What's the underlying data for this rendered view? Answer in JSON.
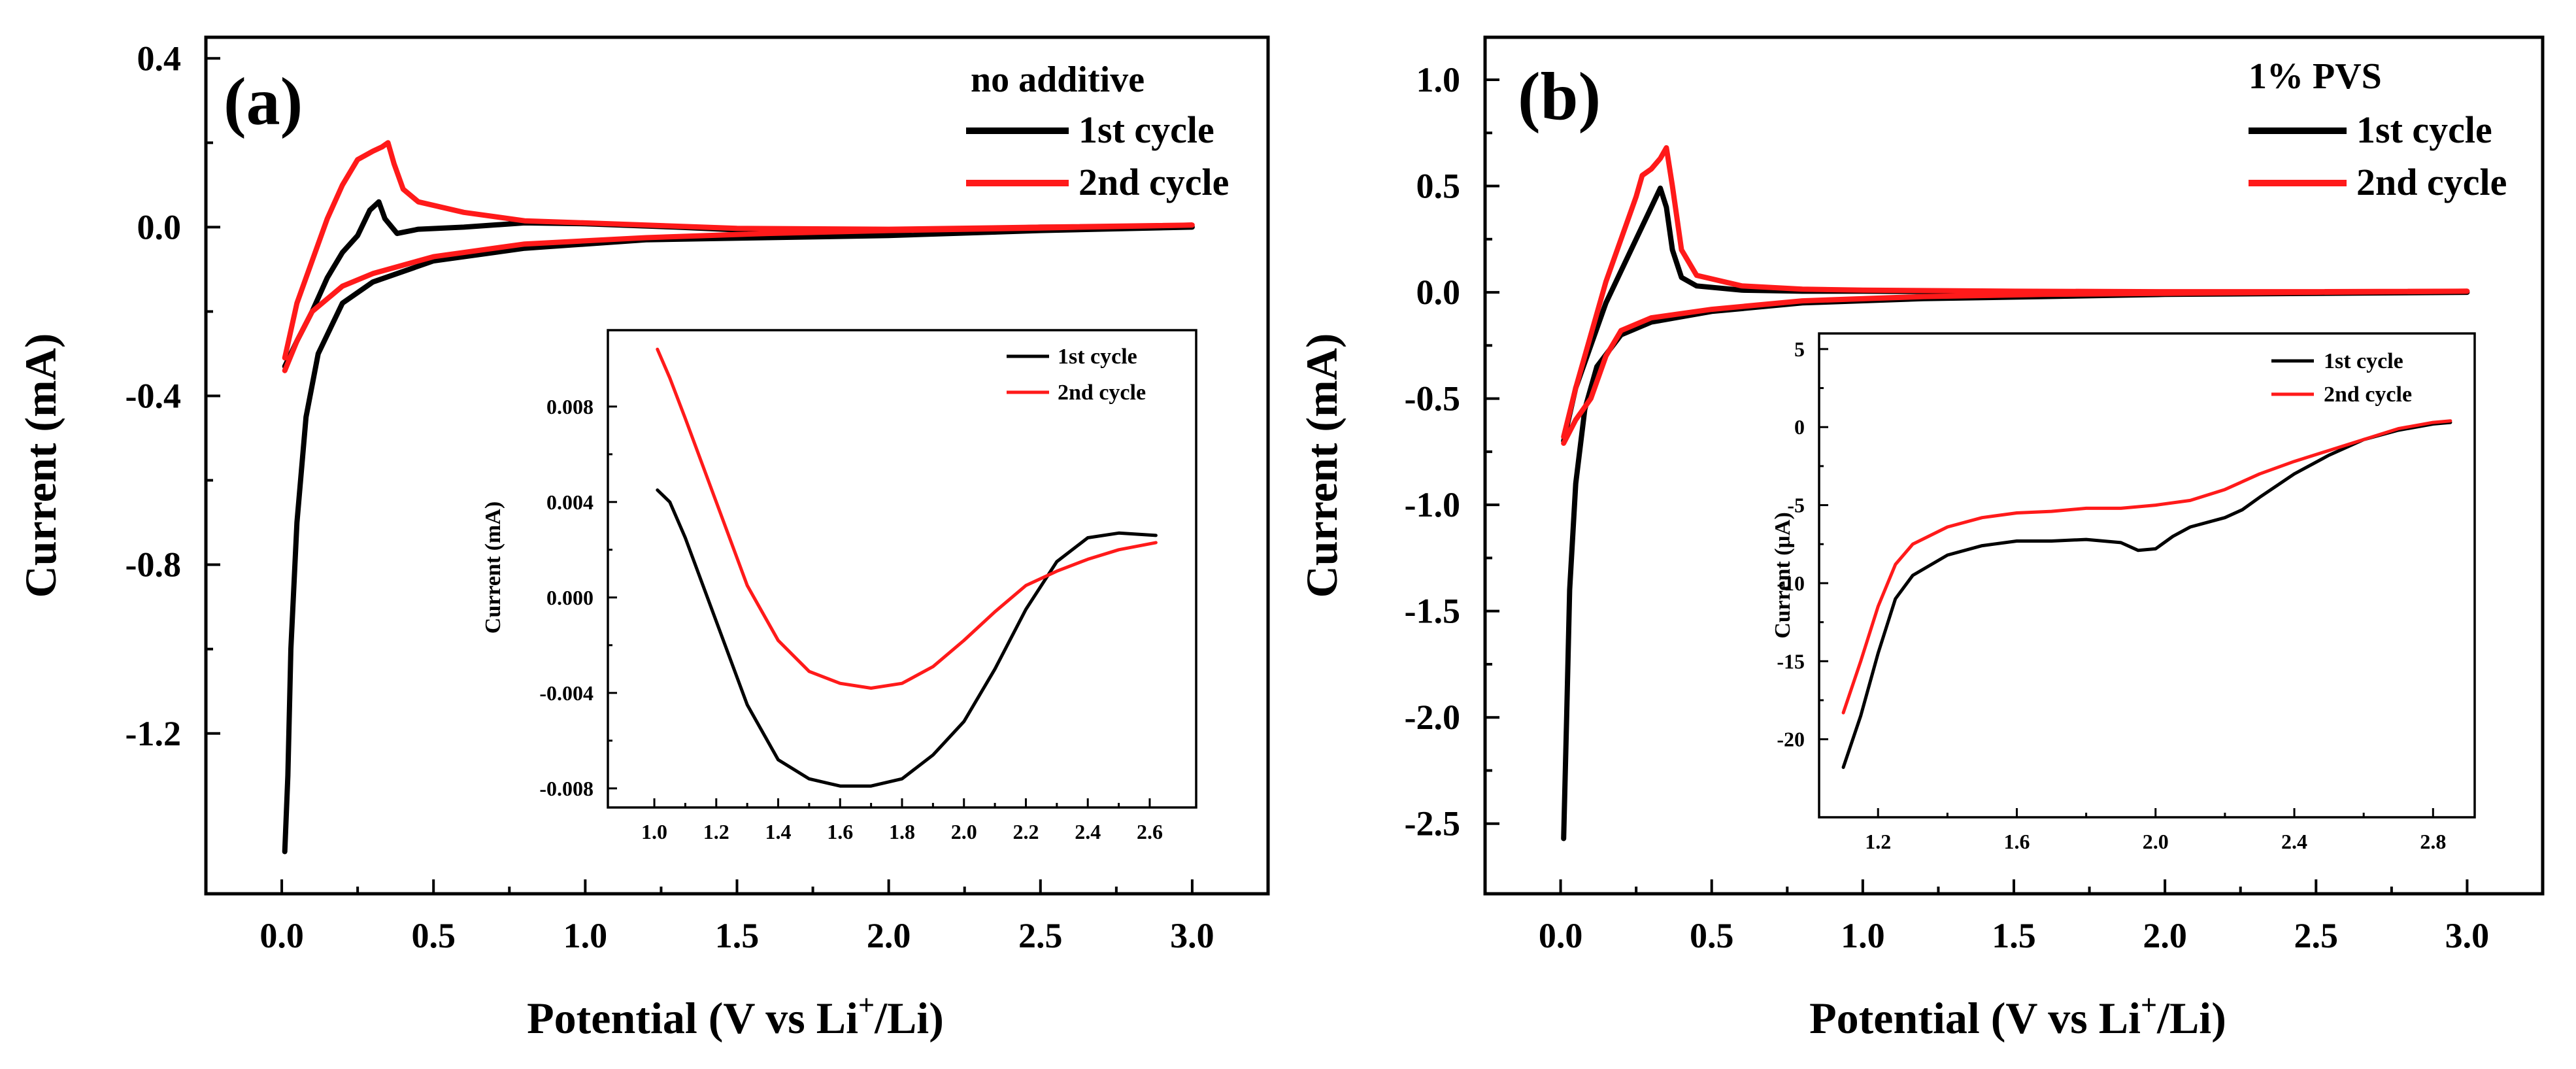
{
  "colors": {
    "cycle1": "#000000",
    "cycle2": "#ff1a1a"
  },
  "chart_data": [
    {
      "id": "a",
      "type": "line",
      "panel_label": "(a)",
      "legend_title": "no additive",
      "xlabel": "Potential (V vs Li+/Li)",
      "xlabel_main": "Potential (V vs Li",
      "xlabel_sup": "+",
      "xlabel_tail": "/Li)",
      "ylabel": "Current (mA)",
      "xlim": [
        -0.25,
        3.25
      ],
      "ylim": [
        -1.58,
        0.45
      ],
      "xticks": [
        0.0,
        0.5,
        1.0,
        1.5,
        2.0,
        2.5,
        3.0
      ],
      "xtick_labels": [
        "0.0",
        "0.5",
        "1.0",
        "1.5",
        "2.0",
        "2.5",
        "3.0"
      ],
      "yticks": [
        0.4,
        0.0,
        -0.4,
        -0.8,
        -1.2
      ],
      "ytick_labels": [
        "0.4",
        "0.0",
        "-0.4",
        "-0.8",
        "-1.2"
      ],
      "series": [
        {
          "name": "1st cycle",
          "color": "#000000",
          "points": [
            [
              0.01,
              -1.48
            ],
            [
              0.02,
              -1.3
            ],
            [
              0.03,
              -1.0
            ],
            [
              0.05,
              -0.7
            ],
            [
              0.08,
              -0.45
            ],
            [
              0.12,
              -0.3
            ],
            [
              0.2,
              -0.18
            ],
            [
              0.3,
              -0.13
            ],
            [
              0.5,
              -0.08
            ],
            [
              0.8,
              -0.05
            ],
            [
              1.2,
              -0.03
            ],
            [
              1.6,
              -0.025
            ],
            [
              2.0,
              -0.02
            ],
            [
              2.5,
              -0.008
            ],
            [
              3.0,
              0.0
            ],
            [
              2.5,
              0.0
            ],
            [
              2.0,
              -0.01
            ],
            [
              1.6,
              -0.01
            ],
            [
              1.3,
              0.0
            ],
            [
              1.0,
              0.008
            ],
            [
              0.8,
              0.01
            ],
            [
              0.6,
              0.0
            ],
            [
              0.45,
              -0.005
            ],
            [
              0.38,
              -0.015
            ],
            [
              0.34,
              0.02
            ],
            [
              0.32,
              0.06
            ],
            [
              0.29,
              0.04
            ],
            [
              0.25,
              -0.02
            ],
            [
              0.2,
              -0.06
            ],
            [
              0.15,
              -0.12
            ],
            [
              0.1,
              -0.2
            ],
            [
              0.05,
              -0.27
            ],
            [
              0.01,
              -0.33
            ]
          ]
        },
        {
          "name": "2nd cycle",
          "color": "#ff1a1a",
          "points": [
            [
              0.01,
              -0.34
            ],
            [
              0.05,
              -0.27
            ],
            [
              0.1,
              -0.2
            ],
            [
              0.2,
              -0.14
            ],
            [
              0.3,
              -0.11
            ],
            [
              0.5,
              -0.07
            ],
            [
              0.8,
              -0.04
            ],
            [
              1.2,
              -0.025
            ],
            [
              1.6,
              -0.015
            ],
            [
              2.0,
              -0.008
            ],
            [
              2.5,
              -0.002
            ],
            [
              3.0,
              0.005
            ],
            [
              2.5,
              0.0
            ],
            [
              2.0,
              -0.005
            ],
            [
              1.5,
              -0.003
            ],
            [
              1.0,
              0.01
            ],
            [
              0.8,
              0.015
            ],
            [
              0.6,
              0.035
            ],
            [
              0.45,
              0.06
            ],
            [
              0.4,
              0.09
            ],
            [
              0.37,
              0.15
            ],
            [
              0.35,
              0.2
            ],
            [
              0.33,
              0.19
            ],
            [
              0.3,
              0.18
            ],
            [
              0.25,
              0.16
            ],
            [
              0.2,
              0.1
            ],
            [
              0.15,
              0.02
            ],
            [
              0.1,
              -0.08
            ],
            [
              0.05,
              -0.18
            ],
            [
              0.01,
              -0.31
            ]
          ]
        }
      ],
      "inset": {
        "xlim": [
          0.85,
          2.75
        ],
        "ylim": [
          -0.0088,
          0.0112
        ],
        "xticks": [
          1.0,
          1.2,
          1.4,
          1.6,
          1.8,
          2.0,
          2.2,
          2.4,
          2.6
        ],
        "xtick_labels": [
          "1.0",
          "1.2",
          "1.4",
          "1.6",
          "1.8",
          "2.0",
          "2.2",
          "2.4",
          "2.6"
        ],
        "yticks": [
          0.008,
          0.004,
          0.0,
          -0.004,
          -0.008
        ],
        "ytick_labels": [
          "0.008",
          "0.004",
          "0.000",
          "-0.004",
          "-0.008"
        ],
        "ylabel": "Current (mA)",
        "legend": [
          "1st cycle",
          "2nd cycle"
        ],
        "series": [
          {
            "name": "1st cycle",
            "color": "#000000",
            "points": [
              [
                1.01,
                0.0045
              ],
              [
                1.05,
                0.004
              ],
              [
                1.1,
                0.0025
              ],
              [
                1.2,
                -0.001
              ],
              [
                1.3,
                -0.0045
              ],
              [
                1.4,
                -0.0068
              ],
              [
                1.5,
                -0.0076
              ],
              [
                1.6,
                -0.0079
              ],
              [
                1.7,
                -0.0079
              ],
              [
                1.8,
                -0.0076
              ],
              [
                1.9,
                -0.0066
              ],
              [
                2.0,
                -0.0052
              ],
              [
                2.1,
                -0.003
              ],
              [
                2.2,
                -0.0005
              ],
              [
                2.3,
                0.0015
              ],
              [
                2.4,
                0.0025
              ],
              [
                2.5,
                0.0027
              ],
              [
                2.62,
                0.0026
              ]
            ]
          },
          {
            "name": "2nd cycle",
            "color": "#ff1a1a",
            "points": [
              [
                1.01,
                0.0104
              ],
              [
                1.05,
                0.0092
              ],
              [
                1.1,
                0.0075
              ],
              [
                1.2,
                0.004
              ],
              [
                1.3,
                0.0005
              ],
              [
                1.4,
                -0.0018
              ],
              [
                1.5,
                -0.0031
              ],
              [
                1.6,
                -0.0036
              ],
              [
                1.7,
                -0.0038
              ],
              [
                1.8,
                -0.0036
              ],
              [
                1.9,
                -0.0029
              ],
              [
                2.0,
                -0.0018
              ],
              [
                2.1,
                -0.0006
              ],
              [
                2.2,
                0.0005
              ],
              [
                2.3,
                0.0011
              ],
              [
                2.4,
                0.0016
              ],
              [
                2.5,
                0.002
              ],
              [
                2.62,
                0.0023
              ]
            ]
          }
        ]
      }
    },
    {
      "id": "b",
      "type": "line",
      "panel_label": "(b)",
      "legend_title": "1% PVS",
      "xlabel": "Potential (V vs Li+/Li)",
      "xlabel_main": "Potential (V vs Li",
      "xlabel_sup": "+",
      "xlabel_tail": "/Li)",
      "ylabel": "Current (mA)",
      "xlim": [
        -0.25,
        3.25
      ],
      "ylim": [
        -2.83,
        1.2
      ],
      "xticks": [
        0.0,
        0.5,
        1.0,
        1.5,
        2.0,
        2.5,
        3.0
      ],
      "xtick_labels": [
        "0.0",
        "0.5",
        "1.0",
        "1.5",
        "2.0",
        "2.5",
        "3.0"
      ],
      "yticks": [
        1.0,
        0.5,
        0.0,
        -0.5,
        -1.0,
        -1.5,
        -2.0,
        -2.5
      ],
      "ytick_labels": [
        "1.0",
        "0.5",
        "0.0",
        "-0.5",
        "-1.0",
        "-1.5",
        "-2.0",
        "-2.5"
      ],
      "series": [
        {
          "name": "1st cycle",
          "color": "#000000",
          "points": [
            [
              0.01,
              -2.57
            ],
            [
              0.02,
              -2.0
            ],
            [
              0.03,
              -1.4
            ],
            [
              0.05,
              -0.9
            ],
            [
              0.08,
              -0.55
            ],
            [
              0.12,
              -0.35
            ],
            [
              0.2,
              -0.2
            ],
            [
              0.3,
              -0.14
            ],
            [
              0.5,
              -0.09
            ],
            [
              0.8,
              -0.05
            ],
            [
              1.2,
              -0.03
            ],
            [
              1.6,
              -0.02
            ],
            [
              2.0,
              -0.01
            ],
            [
              2.5,
              -0.005
            ],
            [
              3.0,
              0.0
            ],
            [
              2.5,
              0.0
            ],
            [
              2.0,
              0.0
            ],
            [
              1.5,
              0.002
            ],
            [
              1.0,
              0.005
            ],
            [
              0.8,
              0.005
            ],
            [
              0.6,
              0.01
            ],
            [
              0.45,
              0.03
            ],
            [
              0.4,
              0.07
            ],
            [
              0.37,
              0.2
            ],
            [
              0.35,
              0.4
            ],
            [
              0.33,
              0.49
            ],
            [
              0.3,
              0.4
            ],
            [
              0.25,
              0.25
            ],
            [
              0.2,
              0.1
            ],
            [
              0.15,
              -0.05
            ],
            [
              0.1,
              -0.25
            ],
            [
              0.05,
              -0.45
            ],
            [
              0.01,
              -0.7
            ]
          ]
        },
        {
          "name": "2nd cycle",
          "color": "#ff1a1a",
          "points": [
            [
              0.01,
              -0.71
            ],
            [
              0.05,
              -0.6
            ],
            [
              0.1,
              -0.5
            ],
            [
              0.15,
              -0.3
            ],
            [
              0.2,
              -0.18
            ],
            [
              0.3,
              -0.12
            ],
            [
              0.5,
              -0.08
            ],
            [
              0.8,
              -0.04
            ],
            [
              1.2,
              -0.02
            ],
            [
              1.6,
              -0.01
            ],
            [
              2.0,
              -0.005
            ],
            [
              2.5,
              0.0
            ],
            [
              3.0,
              0.005
            ],
            [
              2.5,
              0.003
            ],
            [
              2.0,
              0.003
            ],
            [
              1.5,
              0.005
            ],
            [
              1.0,
              0.01
            ],
            [
              0.8,
              0.015
            ],
            [
              0.6,
              0.03
            ],
            [
              0.45,
              0.08
            ],
            [
              0.4,
              0.2
            ],
            [
              0.37,
              0.5
            ],
            [
              0.35,
              0.68
            ],
            [
              0.33,
              0.63
            ],
            [
              0.3,
              0.58
            ],
            [
              0.27,
              0.55
            ],
            [
              0.25,
              0.45
            ],
            [
              0.2,
              0.25
            ],
            [
              0.15,
              0.05
            ],
            [
              0.1,
              -0.2
            ],
            [
              0.05,
              -0.45
            ],
            [
              0.01,
              -0.68
            ]
          ]
        }
      ],
      "inset": {
        "xlim": [
          1.03,
          2.92
        ],
        "ylim": [
          -25,
          6
        ],
        "xticks": [
          1.2,
          1.6,
          2.0,
          2.4,
          2.8
        ],
        "xtick_labels": [
          "1.2",
          "1.6",
          "2.0",
          "2.4",
          "2.8"
        ],
        "yticks": [
          5,
          0,
          -5,
          -10,
          -15,
          -20
        ],
        "ytick_labels": [
          "5",
          "0",
          "-5",
          "-10",
          "-15",
          "-20"
        ],
        "ylabel": "Current (μA)",
        "legend": [
          "1st cycle",
          "2nd cycle"
        ],
        "series": [
          {
            "name": "1st cycle",
            "color": "#000000",
            "points": [
              [
                1.1,
                -21.8
              ],
              [
                1.15,
                -18.5
              ],
              [
                1.2,
                -14.5
              ],
              [
                1.25,
                -11.0
              ],
              [
                1.3,
                -9.5
              ],
              [
                1.4,
                -8.2
              ],
              [
                1.5,
                -7.6
              ],
              [
                1.6,
                -7.3
              ],
              [
                1.7,
                -7.3
              ],
              [
                1.8,
                -7.2
              ],
              [
                1.9,
                -7.4
              ],
              [
                1.95,
                -7.9
              ],
              [
                2.0,
                -7.8
              ],
              [
                2.05,
                -7.0
              ],
              [
                2.1,
                -6.4
              ],
              [
                2.2,
                -5.8
              ],
              [
                2.25,
                -5.3
              ],
              [
                2.3,
                -4.5
              ],
              [
                2.4,
                -3.0
              ],
              [
                2.5,
                -1.8
              ],
              [
                2.6,
                -0.8
              ],
              [
                2.7,
                -0.2
              ],
              [
                2.8,
                0.2
              ],
              [
                2.85,
                0.3
              ]
            ]
          },
          {
            "name": "2nd cycle",
            "color": "#ff1a1a",
            "points": [
              [
                1.1,
                -18.3
              ],
              [
                1.15,
                -15.0
              ],
              [
                1.2,
                -11.5
              ],
              [
                1.25,
                -8.8
              ],
              [
                1.3,
                -7.5
              ],
              [
                1.4,
                -6.4
              ],
              [
                1.5,
                -5.8
              ],
              [
                1.6,
                -5.5
              ],
              [
                1.7,
                -5.4
              ],
              [
                1.8,
                -5.2
              ],
              [
                1.9,
                -5.2
              ],
              [
                2.0,
                -5.0
              ],
              [
                2.1,
                -4.7
              ],
              [
                2.2,
                -4.0
              ],
              [
                2.3,
                -3.0
              ],
              [
                2.4,
                -2.2
              ],
              [
                2.5,
                -1.5
              ],
              [
                2.6,
                -0.8
              ],
              [
                2.7,
                -0.1
              ],
              [
                2.8,
                0.3
              ],
              [
                2.85,
                0.4
              ]
            ]
          }
        ]
      }
    }
  ]
}
